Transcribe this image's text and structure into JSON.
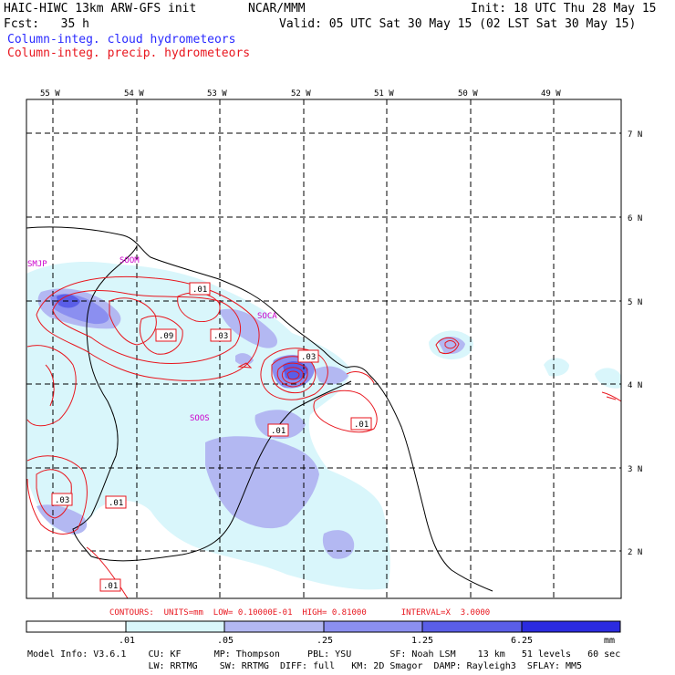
{
  "header": {
    "model": "HAIC-HIWC 13km ARW-GFS init",
    "org": "NCAR/MMM",
    "init": "Init: 18 UTC Thu 28 May 15",
    "fcst": "Fcst:   35 h",
    "valid": "Valid: 05 UTC Sat 30 May 15 (02 LST Sat 30 May 15)",
    "field_cloud": "Column-integ. cloud hydrometeors",
    "field_precip": "Column-integ. precip. hydrometeors"
  },
  "colors": {
    "cloud_text": "#2a2aff",
    "precip_text": "#e8161e",
    "contour": "#e8161e",
    "grid": "#000000",
    "shade_1": "#d9f6fb",
    "shade_2": "#b3b8f2",
    "shade_3": "#8b8ff0",
    "shade_4": "#5a5ee8",
    "shade_5": "#2b2be0",
    "shade_6": "#1a0fe6"
  },
  "map": {
    "lon_labels": [
      "55 W",
      "54 W",
      "53 W",
      "52 W",
      "51 W",
      "50 W",
      "49 W"
    ],
    "lat_labels": [
      "7 N",
      "6 N",
      "5 N",
      "4 N",
      "3 N",
      "2 N"
    ],
    "region_labels": [
      "SMJP",
      "SOOM",
      "SOCA",
      "SOOS"
    ],
    "contour_labels": [
      ".01",
      ".09",
      ".03",
      ".03",
      ".01",
      ".01",
      ".03",
      ".01",
      ".01"
    ]
  },
  "contour_info": {
    "text": "CONTOURS:  UNITS=mm  LOW= 0.10000E-01  HIGH= 0.81000       INTERVAL=X  3.0000"
  },
  "colorbar": {
    "labels": [
      ".01",
      ".05",
      ".25",
      "1.25",
      "6.25"
    ],
    "unit": "mm"
  },
  "footer": {
    "line1": "Model Info: V3.6.1    CU: KF      MP: Thompson     PBL: YSU       SF: Noah LSM    13 km   51 levels   60 sec",
    "line2": "                      LW: RRTMG    SW: RRTMG  DIFF: full   KM: 2D Smagor  DAMP: Rayleigh3  SFLAY: MM5"
  }
}
